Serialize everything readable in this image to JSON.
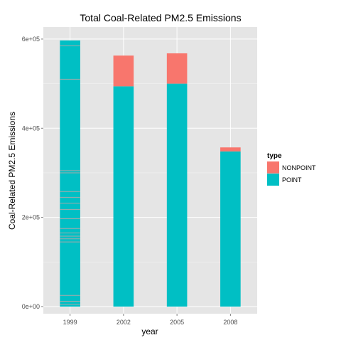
{
  "chart_data": {
    "type": "bar",
    "stacked": true,
    "title": "Total Coal-Related PM2.5 Emissions",
    "xlabel": "year",
    "ylabel": "Coal-Related PM2.5 Emissions",
    "categories": [
      "1999",
      "2002",
      "2005",
      "2008"
    ],
    "series": [
      {
        "name": "POINT",
        "color": "#00BFC4",
        "values": [
          597000,
          494000,
          500000,
          348000
        ]
      },
      {
        "name": "NONPOINT",
        "color": "#F8766D",
        "values": [
          0,
          69000,
          68000,
          9000
        ]
      }
    ],
    "ylim": [
      -16000,
      627000
    ],
    "yticks": [
      0,
      200000,
      400000,
      600000
    ],
    "ytick_labels": [
      "0e+00",
      "2e+05",
      "4e+05",
      "6e+05"
    ],
    "segment_lines_1999": [
      5000,
      12000,
      25000,
      145000,
      152000,
      158000,
      165000,
      175000,
      197000,
      218000,
      232000,
      245000,
      258000,
      300000,
      305000,
      510000,
      585000
    ],
    "legend": {
      "title": "type",
      "position": "right",
      "entries": [
        "NONPOINT",
        "POINT"
      ]
    },
    "grid": true,
    "panel_background": "#E5E5E5",
    "gridline_color": "#FFFFFF"
  }
}
